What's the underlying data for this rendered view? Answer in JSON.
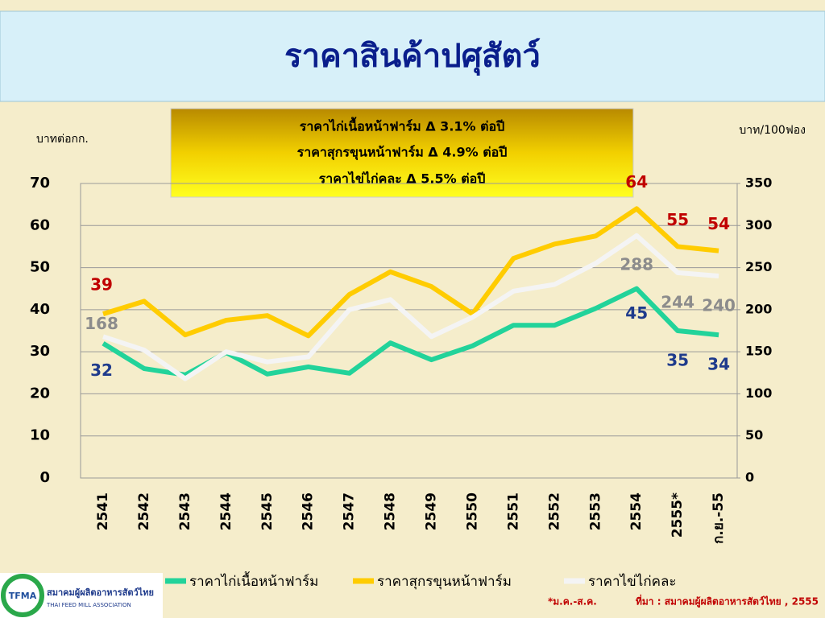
{
  "chart_data": {
    "type": "line",
    "title": "ราคาสินค้าปศุสัตว์",
    "annotations": [
      "ราคาไก่เนื้อหน้าฟาร์ม Δ 3.1% ต่อปี",
      "ราคาสุกรขุนหน้าฟาร์ม Δ 4.9% ต่อปี",
      "ราคาไข่ไก่คละ Δ 5.5% ต่อปี"
    ],
    "y_label": "บาทต่อกก.",
    "y2_label": "บาท/100ฟอง",
    "categories": [
      "2541",
      "2542",
      "2543",
      "2544",
      "2545",
      "2546",
      "2547",
      "2548",
      "2549",
      "2550",
      "2551",
      "2552",
      "2553",
      "2554",
      "2555*",
      "ก.ย.-55"
    ],
    "series": [
      {
        "name": "ราคาไก่เนื้อหน้าฟาร์ม",
        "color": "#22d39a",
        "label_color": "#1f3b8c",
        "values": [
          32,
          26,
          24.5,
          29.8,
          24.7,
          26.4,
          24.9,
          32.1,
          28.1,
          31.4,
          36.3,
          36.3,
          40.3,
          45,
          35,
          34
        ],
        "value_labels": [
          "32",
          null,
          null,
          null,
          null,
          null,
          null,
          null,
          null,
          null,
          null,
          null,
          null,
          "45",
          "35",
          "34"
        ]
      },
      {
        "name": "ราคาสุกรขุนหน้าฟาร์ม",
        "color": "#ffcc00",
        "label_color": "#c00000",
        "values": [
          39,
          42,
          34,
          37.5,
          38.6,
          33.8,
          43.6,
          49,
          45.5,
          39,
          52.2,
          55.6,
          57.5,
          64,
          55,
          54
        ],
        "value_labels": [
          "39",
          null,
          null,
          null,
          null,
          null,
          null,
          null,
          null,
          null,
          null,
          null,
          null,
          "64",
          "55",
          "54"
        ]
      },
      {
        "name": "ราคาไข่ไก่คละ",
        "color": "#f4f4f4",
        "label_color": "#8c8c8c",
        "axis": "y2",
        "values": [
          168,
          152,
          118,
          150,
          138,
          144,
          200,
          212,
          168,
          191,
          222,
          230,
          255,
          288,
          244,
          240
        ],
        "value_labels": [
          "168",
          null,
          null,
          null,
          null,
          null,
          null,
          null,
          null,
          null,
          null,
          null,
          null,
          "288",
          "244",
          "240"
        ]
      }
    ],
    "ylim": [
      0,
      70
    ],
    "yticks": [
      0,
      10,
      20,
      30,
      40,
      50,
      60,
      70
    ],
    "y2lim": [
      0,
      350
    ],
    "y2ticks": [
      0,
      50,
      100,
      150,
      200,
      250,
      300,
      350
    ],
    "grid": true,
    "footnote": "*ม.ค.-ส.ค.",
    "source": "ที่มา : สมาคมผู้ผลิตอาหารสัตว์ไทย , 2555",
    "logo": {
      "mark": "TFMA",
      "name": "สมาคมผู้ผลิตอาหารสัตว์ไทย",
      "name_en": "THAI FEED MILL ASSOCIATION"
    }
  }
}
